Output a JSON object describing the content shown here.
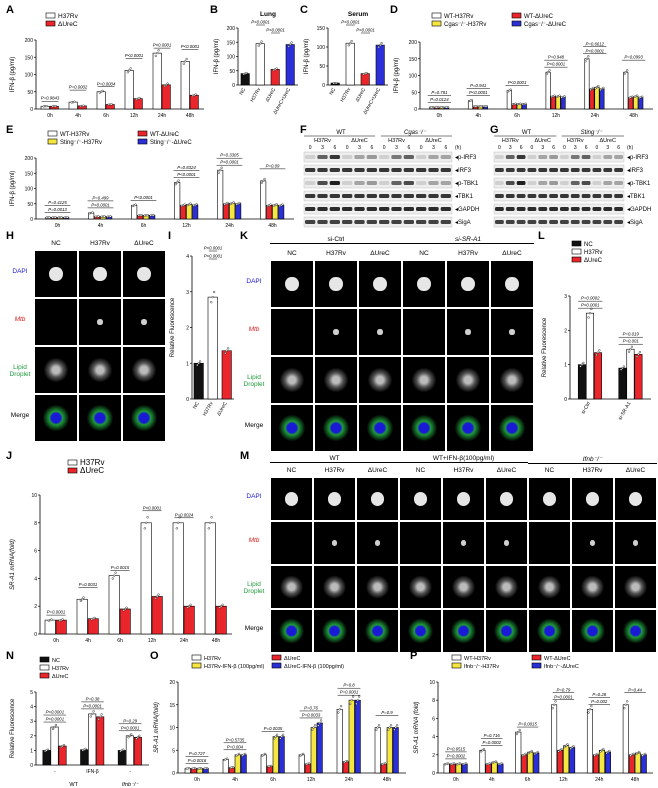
{
  "panels": {
    "A": {
      "label": "A"
    },
    "B": {
      "label": "B"
    },
    "C": {
      "label": "C"
    },
    "D": {
      "label": "D"
    },
    "E": {
      "label": "E"
    },
    "F": {
      "label": "F"
    },
    "G": {
      "label": "G"
    },
    "H": {
      "label": "H"
    },
    "I": {
      "label": "I"
    },
    "J": {
      "label": "J"
    },
    "K": {
      "label": "K"
    },
    "L": {
      "label": "L"
    },
    "M": {
      "label": "M"
    },
    "N": {
      "label": "N"
    },
    "O": {
      "label": "O"
    },
    "P": {
      "label": "P"
    }
  },
  "colors": {
    "black": "#111111",
    "white": "#ffffff",
    "red": "#e8262b",
    "yellow": "#f5e642",
    "blue": "#2b2fd6",
    "dapi": "#1a1ad6",
    "mtb": "#d62020",
    "lipid": "#1f9a3a"
  },
  "chart_data": [
    {
      "id": "A",
      "type": "bar",
      "ylabel": "IFN-β (pg/ml)",
      "ylim": [
        0,
        200
      ],
      "yticks": [
        "0",
        "50",
        "100",
        "150",
        "200"
      ],
      "categories": [
        "0h",
        "4h",
        "6h",
        "12h",
        "24h",
        "48h"
      ],
      "series": [
        {
          "name": "H37Rv",
          "values": [
            8,
            20,
            50,
            112,
            162,
            138
          ]
        },
        {
          "name": "ΔUreC",
          "values": [
            8,
            9,
            13,
            30,
            70,
            40
          ]
        }
      ],
      "pvalues": [
        "P=0.9843",
        "P=0.0002",
        "P=0.0004",
        "P<0.0001",
        "P<0.0001",
        "P<0.0001"
      ]
    },
    {
      "id": "B",
      "type": "bar",
      "title": "Lung",
      "ylabel": "IFN-β (pg/ml)",
      "ylim": [
        0,
        200
      ],
      "yticks": [
        "0",
        "50",
        "100",
        "150",
        "200"
      ],
      "categories": [
        "NC",
        "H37Rv",
        "ΔUreC",
        "ΔUreC+UreC"
      ],
      "values": [
        40,
        145,
        55,
        142
      ],
      "pvalues": [
        "P<0.0001",
        "P<0.0001"
      ]
    },
    {
      "id": "C",
      "type": "bar",
      "title": "Serum",
      "ylabel": "IFN-β (pg/ml)",
      "ylim": [
        0,
        150
      ],
      "yticks": [
        "0",
        "50",
        "100",
        "150"
      ],
      "categories": [
        "NC",
        "H37Rv",
        "ΔUreC",
        "ΔUreC+UreC"
      ],
      "values": [
        5,
        110,
        30,
        105
      ],
      "pvalues": [
        "P<0.0001",
        "P<0.0001"
      ]
    },
    {
      "id": "D",
      "type": "bar",
      "ylabel": "IFN-β (pg/ml)",
      "ylim": [
        0,
        200
      ],
      "yticks": [
        "0",
        "50",
        "100",
        "150",
        "200"
      ],
      "categories": [
        "0h",
        "4h",
        "6h",
        "12h",
        "24h",
        "48h"
      ],
      "series": [
        {
          "name": "WT-H37Rv",
          "values": [
            5,
            25,
            55,
            110,
            150,
            110
          ]
        },
        {
          "name": "WT-ΔUreC",
          "values": [
            5,
            8,
            15,
            38,
            60,
            35
          ]
        },
        {
          "name": "Cgas⁻/⁻-H37Rv",
          "values": [
            5,
            8,
            15,
            38,
            65,
            38
          ]
        },
        {
          "name": "Cgas⁻/⁻-ΔUreC",
          "values": [
            5,
            8,
            15,
            36,
            60,
            35
          ]
        }
      ],
      "pvalues": [
        "P=0.0124",
        "P=0.781",
        "P<0.0001",
        "P=0.941",
        "P<0.0001",
        "P=0.948",
        "P<0.0001",
        "P=0.6612",
        "P<0.0001",
        "P=0.0993"
      ]
    },
    {
      "id": "E",
      "type": "bar",
      "ylabel": "IFN-β (pg/ml)",
      "ylim": [
        0,
        200
      ],
      "yticks": [
        "0",
        "50",
        "100",
        "150",
        "200"
      ],
      "categories": [
        "0h",
        "4h",
        "6h",
        "12h",
        "24h",
        "48h"
      ],
      "series": [
        {
          "name": "WT-H37Rv",
          "values": [
            5,
            20,
            45,
            120,
            160,
            125
          ]
        },
        {
          "name": "WT-ΔUreC",
          "values": [
            5,
            8,
            12,
            45,
            50,
            45
          ]
        },
        {
          "name": "Sting⁻/⁻-H37Rv",
          "values": [
            5,
            8,
            12,
            48,
            52,
            46
          ]
        },
        {
          "name": "Sting⁻/⁻-ΔUreC",
          "values": [
            5,
            8,
            12,
            46,
            50,
            45
          ]
        }
      ],
      "pvalues": [
        "P=0.0013",
        "P=0.4125",
        "P<0.0001",
        "P=0.499",
        "P<0.0001",
        "P=0.8324",
        "P<0.0001",
        "P=0.3305",
        "P<0.0001",
        "P=0.09"
      ]
    },
    {
      "id": "I",
      "type": "bar",
      "ylabel": "Relative Fluorescence",
      "ylim": [
        0,
        4
      ],
      "yticks": [
        "0",
        "1",
        "2",
        "3",
        "4"
      ],
      "categories": [
        "NC",
        "H37Rv",
        "ΔUreC"
      ],
      "values": [
        1.0,
        2.85,
        1.35
      ],
      "pvalues": [
        "P<0.0001",
        "P<0.0001"
      ]
    },
    {
      "id": "L",
      "type": "bar",
      "ylabel": "Relative Fluorescence",
      "ylim": [
        0,
        3
      ],
      "yticks": [
        "0",
        "1",
        "2",
        "3"
      ],
      "categories": [
        "si-Ctrl",
        "si-SR-A1"
      ],
      "series": [
        {
          "name": "NC",
          "values": [
            1.0,
            0.9
          ]
        },
        {
          "name": "H37Rv",
          "values": [
            2.5,
            1.45
          ]
        },
        {
          "name": "ΔUreC",
          "values": [
            1.35,
            1.3
          ]
        }
      ],
      "pvalues": [
        "P<0.0001",
        "P=0.0002",
        "P=0.001",
        "P=0.019"
      ]
    },
    {
      "id": "J",
      "type": "bar",
      "ylabel": "SR-A1 mRNA(fold)",
      "ylim": [
        0,
        10
      ],
      "yticks": [
        "0",
        "2",
        "4",
        "6",
        "8",
        "10"
      ],
      "categories": [
        "0h",
        "4h",
        "6h",
        "12h",
        "24h",
        "48h"
      ],
      "series": [
        {
          "name": "H37Rv",
          "values": [
            1.0,
            2.5,
            4.2,
            8.0,
            8.0,
            8.0
          ]
        },
        {
          "name": "ΔUreC",
          "values": [
            1.0,
            1.1,
            1.8,
            2.7,
            2.0,
            2.0
          ]
        }
      ],
      "pvalues": [
        "P=0.0001",
        "P=0.0031",
        "P=0.0015",
        "P<0.0001",
        "P=0.0024"
      ]
    },
    {
      "id": "N",
      "type": "bar",
      "ylabel": "Relative Fluorescence",
      "ylim": [
        0,
        5
      ],
      "yticks": [
        "0",
        "1",
        "2",
        "3",
        "4",
        "5"
      ],
      "categories": [
        "-",
        "IFN-β",
        "-"
      ],
      "group_labels": [
        "WT",
        "Ifnb⁻/⁻"
      ],
      "series": [
        {
          "name": "NC",
          "values": [
            1.0,
            1.05,
            1.0
          ]
        },
        {
          "name": "H37Rv",
          "values": [
            2.6,
            3.5,
            2.0
          ]
        },
        {
          "name": "ΔUreC",
          "values": [
            1.3,
            3.3,
            1.9
          ]
        }
      ],
      "pvalues": [
        "P<0.0001",
        "P<0.0001",
        "P<0.0001",
        "P=0.38",
        "P<0.0001",
        "P=0.29"
      ]
    },
    {
      "id": "O",
      "type": "bar",
      "ylabel": "SR-A1 mRNA(fold)",
      "ylim": [
        0,
        20
      ],
      "yticks": [
        "0",
        "5",
        "10",
        "15",
        "20"
      ],
      "categories": [
        "0h",
        "4h",
        "6h",
        "12h",
        "24h",
        "48h"
      ],
      "series": [
        {
          "name": "H37Rv",
          "values": [
            1,
            3,
            4,
            4,
            14,
            10
          ]
        },
        {
          "name": "ΔUreC",
          "values": [
            1,
            1.2,
            1.5,
            2,
            2.5,
            2
          ]
        },
        {
          "name": "H37Rv-IFN-β (100pg/ml)",
          "values": [
            1,
            4,
            8,
            10,
            16,
            10
          ]
        },
        {
          "name": "ΔUreC-IFN-β (100pg/ml)",
          "values": [
            1,
            4,
            8,
            11,
            16,
            10
          ]
        }
      ],
      "pvalues": [
        "P=0.0016",
        "P=0.727",
        "P=0.004",
        "P=0.5735",
        "P=0.0035",
        "P=0.76",
        "P=0.0033",
        "P=0.8",
        "P=0.0001",
        "P=0.9"
      ]
    },
    {
      "id": "P",
      "type": "bar",
      "ylabel": "SR-A1 mRNA (fold)",
      "ylim": [
        0,
        10
      ],
      "yticks": [
        "0",
        "2",
        "4",
        "6",
        "8",
        "10"
      ],
      "categories": [
        "0h",
        "4h",
        "6h",
        "12h",
        "24h",
        "48h"
      ],
      "series": [
        {
          "name": "WT-H37Rv",
          "values": [
            1,
            2.5,
            4.5,
            7.5,
            7.0,
            7.5
          ]
        },
        {
          "name": "WT-ΔUreC",
          "values": [
            1,
            1.0,
            2.0,
            2.5,
            2.0,
            2.0
          ]
        },
        {
          "name": "Ifnb⁻/⁻-H37Rv",
          "values": [
            1,
            1.2,
            2.3,
            3.0,
            2.5,
            2.2
          ]
        },
        {
          "name": "Ifnb⁻/⁻-ΔUreC",
          "values": [
            1,
            1.0,
            2.2,
            2.8,
            2.3,
            2.0
          ]
        }
      ],
      "pvalues": [
        "P=0.0002",
        "P=0.6515",
        "P=0.0002",
        "P=0.716",
        "P=0.0015",
        "P=0.79",
        "P<0.0001",
        "P=0.28",
        "P=0.002",
        "P=0.44"
      ]
    }
  ],
  "blots": {
    "F": {
      "groups": [
        "WT",
        "Cgas⁻/⁻"
      ],
      "strains": [
        "H37Rv",
        "ΔUreC",
        "H37Rv",
        "ΔUreC"
      ],
      "times": [
        "0",
        "3",
        "6",
        "0",
        "3",
        "6",
        "0",
        "3",
        "6",
        "0",
        "3",
        "6"
      ],
      "time_unit": "(h)",
      "bands": [
        "p-IRF3",
        "IRF3",
        "p-TBK1",
        "TBK1",
        "GAPDH",
        "SigA"
      ]
    },
    "G": {
      "groups": [
        "WT",
        "Sting⁻/⁻"
      ],
      "strains": [
        "H37Rv",
        "ΔUreC",
        "H37Rv",
        "ΔUreC"
      ],
      "times": [
        "0",
        "3",
        "6",
        "0",
        "3",
        "6",
        "0",
        "3",
        "6",
        "0",
        "3",
        "6"
      ],
      "time_unit": "(h)",
      "bands": [
        "p-IRF3",
        "IRF3",
        "p-TBK1",
        "TBK1",
        "GAPDH",
        "SigA"
      ]
    }
  },
  "micro": {
    "H": {
      "cols": [
        "NC",
        "H37Rv",
        "ΔUreC"
      ],
      "rows": [
        "DAPI",
        "Mtb",
        "Lipid Droplet",
        "Merge"
      ]
    },
    "K": {
      "groups": [
        "si-Ctrl",
        "si-SR-A1"
      ],
      "cols": [
        "NC",
        "H37Rv",
        "ΔUreC",
        "NC",
        "H37Rv",
        "ΔUreC"
      ],
      "rows": [
        "DAPI",
        "Mtb",
        "Lipid Droplet",
        "Merge"
      ]
    },
    "M": {
      "groups": [
        "WT",
        "WT+IFN-β(100pg/ml)",
        "Ifnb⁻/⁻"
      ],
      "cols": [
        "NC",
        "H37Rv",
        "ΔUreC",
        "NC",
        "H37Rv",
        "ΔUreC",
        "NC",
        "H37Rv",
        "ΔUreC"
      ],
      "rows": [
        "DAPI",
        "Mtb",
        "Lipid Droplet",
        "Merge"
      ]
    }
  }
}
